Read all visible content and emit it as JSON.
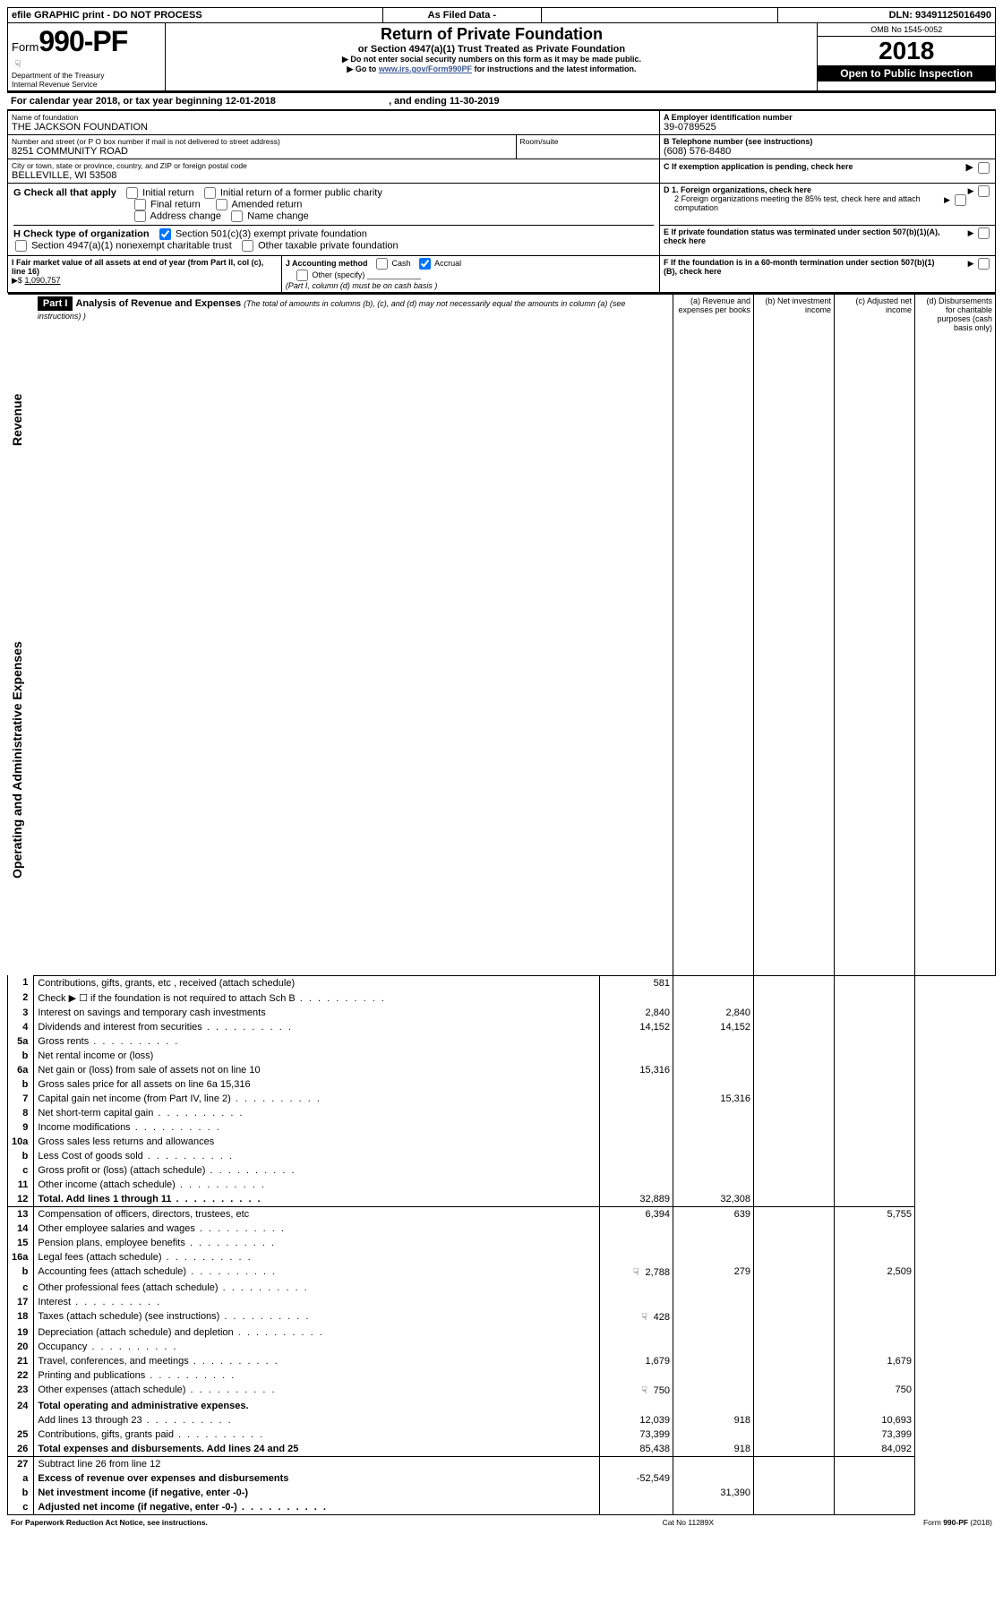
{
  "top_bar": {
    "efile": "efile GRAPHIC print - DO NOT PROCESS",
    "as_filed": "As Filed Data -",
    "dln_label": "DLN:",
    "dln": "93491125016490"
  },
  "header": {
    "form_label_pre": "Form",
    "form_number": "990-PF",
    "dept1": "Department of the Treasury",
    "dept2": "Internal Revenue Service",
    "title": "Return of Private Foundation",
    "subtitle": "or Section 4947(a)(1) Trust Treated as Private Foundation",
    "note1": "Do not enter social security numbers on this form as it may be made public.",
    "note2_prefix": "Go to ",
    "note2_link": "www.irs.gov/Form990PF",
    "note2_suffix": " for instructions and the latest information.",
    "omb_label": "OMB No",
    "omb": "1545-0052",
    "year": "2018",
    "open": "Open to Public Inspection"
  },
  "calendar_line": {
    "prefix": "For calendar year 2018, or tax year beginning ",
    "begin": "12-01-2018",
    "mid": " , and ending ",
    "end": "11-30-2019"
  },
  "entity": {
    "name_lbl": "Name of foundation",
    "name": "THE JACKSON FOUNDATION",
    "addr_lbl": "Number and street (or P O  box number if mail is not delivered to street address)",
    "addr": "8251 COMMUNITY ROAD",
    "room_lbl": "Room/suite",
    "city_lbl": "City or town, state or province, country, and ZIP or foreign postal code",
    "city": "BELLEVILLE, WI  53508"
  },
  "right_box": {
    "A_lbl": "A Employer identification number",
    "A_val": "39-0789525",
    "B_lbl": "B Telephone number (see instructions)",
    "B_val": "(608) 576-8480",
    "C_lbl": "C If exemption application is pending, check here",
    "D1": "D 1. Foreign organizations, check here",
    "D2": "2  Foreign organizations meeting the 85% test, check here and attach computation",
    "E": "E  If private foundation status was terminated under section 507(b)(1)(A), check here",
    "F": "F  If the foundation is in a 60-month termination under section 507(b)(1)(B), check here"
  },
  "section_G": {
    "lbl": "G Check all that apply",
    "o1": "Initial return",
    "o2": "Initial return of a former public charity",
    "o3": "Final return",
    "o4": "Amended return",
    "o5": "Address change",
    "o6": "Name change"
  },
  "section_H": {
    "lbl": "H Check type of organization",
    "o1": "Section 501(c)(3) exempt private foundation",
    "o2": "Section 4947(a)(1) nonexempt charitable trust",
    "o3": "Other taxable private foundation"
  },
  "section_I": {
    "lbl": "I Fair market value of all assets at end of year (from Part II, col  (c), line 16)",
    "val_prefix": "▶$ ",
    "val": "1,090,757"
  },
  "section_J": {
    "lbl": "J Accounting method",
    "o1": "Cash",
    "o2": "Accrual",
    "o3": "Other (specify)",
    "note": "(Part I, column (d) must be on cash basis )"
  },
  "part1_header": {
    "tag": "Part I",
    "title": "Analysis of Revenue and Expenses",
    "tail": " (The total of amounts in columns (b), (c), and (d) may not necessarily equal the amounts in column (a) (see instructions) )",
    "col_a": "(a)   Revenue and expenses per books",
    "col_b": "(b)  Net investment income",
    "col_c": "(c)  Adjusted net income",
    "col_d": "(d)  Disbursements for charitable purposes (cash basis only)"
  },
  "rows": [
    {
      "n": "1",
      "d": "Contributions, gifts, grants, etc , received (attach schedule)",
      "a": "581",
      "b": "",
      "c": "",
      "cd": ""
    },
    {
      "n": "2",
      "d": "Check ▶ ☐ if the foundation is not required to attach Sch  B",
      "dots": true
    },
    {
      "n": "3",
      "d": "Interest on savings and temporary cash investments",
      "a": "2,840",
      "b": "2,840"
    },
    {
      "n": "4",
      "d": "Dividends and interest from securities",
      "a": "14,152",
      "b": "14,152",
      "dots": true
    },
    {
      "n": "5a",
      "d": "Gross rents",
      "dots": true
    },
    {
      "n": "b",
      "d": "Net rental income or (loss)"
    },
    {
      "n": "6a",
      "d": "Net gain or (loss) from sale of assets not on line 10",
      "a": "15,316"
    },
    {
      "n": "b",
      "d": "Gross sales price for all assets on line 6a            15,316"
    },
    {
      "n": "7",
      "d": "Capital gain net income (from Part IV, line 2)",
      "b": "15,316",
      "dots": true
    },
    {
      "n": "8",
      "d": "Net short-term capital gain",
      "dots": true
    },
    {
      "n": "9",
      "d": "Income modifications",
      "dots": true
    },
    {
      "n": "10a",
      "d": "Gross sales less returns and allowances"
    },
    {
      "n": "b",
      "d": "Less  Cost of goods sold",
      "dots": true
    },
    {
      "n": "c",
      "d": "Gross profit or (loss) (attach schedule)",
      "dots": true
    },
    {
      "n": "11",
      "d": "Other income (attach schedule)",
      "dots": true
    },
    {
      "n": "12",
      "d": "Total. Add lines 1 through 11",
      "a": "32,889",
      "b": "32,308",
      "bold": true,
      "dots": true,
      "bb": true
    },
    {
      "n": "13",
      "d": "Compensation of officers, directors, trustees, etc",
      "a": "6,394",
      "b": "639",
      "cd": "5,755"
    },
    {
      "n": "14",
      "d": "Other employee salaries and wages",
      "dots": true
    },
    {
      "n": "15",
      "d": "Pension plans, employee benefits",
      "dots": true
    },
    {
      "n": "16a",
      "d": "Legal fees (attach schedule)",
      "dots": true
    },
    {
      "n": "b",
      "d": "Accounting fees (attach schedule)",
      "a": "2,788",
      "b": "279",
      "cd": "2,509",
      "icon": true,
      "dots": true
    },
    {
      "n": "c",
      "d": "Other professional fees (attach schedule)",
      "dots": true
    },
    {
      "n": "17",
      "d": "Interest",
      "dots": true
    },
    {
      "n": "18",
      "d": "Taxes (attach schedule) (see instructions)",
      "a": "428",
      "icon": true,
      "dots": true
    },
    {
      "n": "19",
      "d": "Depreciation (attach schedule) and depletion",
      "dots": true
    },
    {
      "n": "20",
      "d": "Occupancy",
      "dots": true
    },
    {
      "n": "21",
      "d": "Travel, conferences, and meetings",
      "a": "1,679",
      "cd": "1,679",
      "dots": true
    },
    {
      "n": "22",
      "d": "Printing and publications",
      "dots": true
    },
    {
      "n": "23",
      "d": "Other expenses (attach schedule)",
      "a": "750",
      "cd": "750",
      "icon": true,
      "dots": true
    },
    {
      "n": "24",
      "d": "Total operating and administrative expenses.",
      "bold": true
    },
    {
      "n": "",
      "d": "Add lines 13 through 23",
      "a": "12,039",
      "b": "918",
      "cd": "10,693",
      "dots": true
    },
    {
      "n": "25",
      "d": "Contributions, gifts, grants paid",
      "a": "73,399",
      "cd": "73,399",
      "dots": true
    },
    {
      "n": "26",
      "d": "Total expenses and disbursements. Add lines 24 and 25",
      "a": "85,438",
      "b": "918",
      "cd": "84,092",
      "bold": true,
      "bb": true
    },
    {
      "n": "27",
      "d": "Subtract line 26 from line 12"
    },
    {
      "n": "a",
      "d": "Excess of revenue over expenses and disbursements",
      "a": "-52,549",
      "bold": true
    },
    {
      "n": "b",
      "d": "Net investment income (if negative, enter -0-)",
      "b": "31,390",
      "bold": true
    },
    {
      "n": "c",
      "d": "Adjusted net income (if negative, enter -0-)",
      "bold": true,
      "dots": true,
      "bb": true
    }
  ],
  "footer": {
    "left": "For Paperwork Reduction Act Notice, see instructions.",
    "mid": "Cat  No  11289X",
    "right_pre": "Form ",
    "right_bold": "990-PF",
    "right_post": " (2018)"
  }
}
